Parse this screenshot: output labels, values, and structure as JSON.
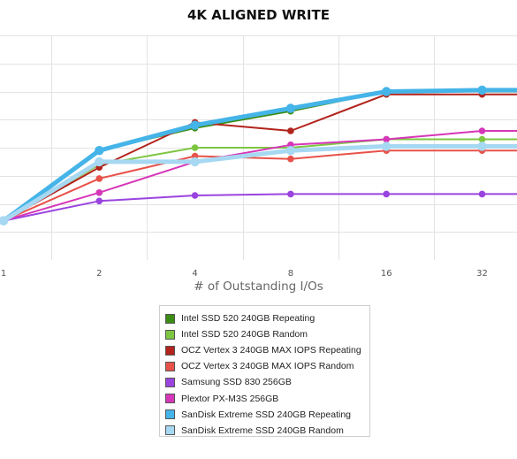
{
  "chart_data": {
    "type": "line",
    "title": "4K ALIGNED WRITE",
    "xlabel": "# of Outstanding I/Os",
    "ylabel": "",
    "categories": [
      "1",
      "2",
      "4",
      "8",
      "16",
      "32"
    ],
    "ylim": [
      0,
      8
    ],
    "grid": true,
    "legend": "bottom-center",
    "series": [
      {
        "name": "Intel SSD 520 240GB Repeating",
        "color": "#3a8c12",
        "values": [
          1.4,
          3.9,
          4.7,
          5.3,
          6.0,
          6.0
        ]
      },
      {
        "name": "Intel SSD 520 240GB Random",
        "color": "#7ec642",
        "values": [
          1.4,
          3.4,
          4.0,
          4.0,
          4.3,
          4.3
        ]
      },
      {
        "name": "OCZ Vertex 3 240GB MAX IOPS Repeating",
        "color": "#b2231b",
        "values": [
          1.4,
          3.3,
          4.9,
          4.6,
          5.9,
          5.9
        ]
      },
      {
        "name": "OCZ Vertex 3 240GB MAX IOPS Random",
        "color": "#e8524a",
        "values": [
          1.4,
          2.9,
          3.7,
          3.6,
          3.9,
          3.9
        ]
      },
      {
        "name": "Samsung SSD 830 256GB",
        "color": "#9a44e0",
        "values": [
          1.4,
          2.1,
          2.3,
          2.35,
          2.35,
          2.35
        ]
      },
      {
        "name": "Plextor PX-M3S 256GB",
        "color": "#d636b8",
        "values": [
          1.4,
          2.4,
          3.5,
          4.1,
          4.3,
          4.6
        ]
      },
      {
        "name": "SanDisk Extreme SSD 240GB Repeating",
        "color": "#45b4e8",
        "values": [
          1.4,
          3.9,
          4.8,
          5.4,
          6.0,
          6.05
        ]
      },
      {
        "name": "SanDisk Extreme SSD 240GB Random",
        "color": "#a7d8f2",
        "values": [
          1.4,
          3.5,
          3.5,
          3.9,
          4.05,
          4.05
        ]
      }
    ]
  }
}
